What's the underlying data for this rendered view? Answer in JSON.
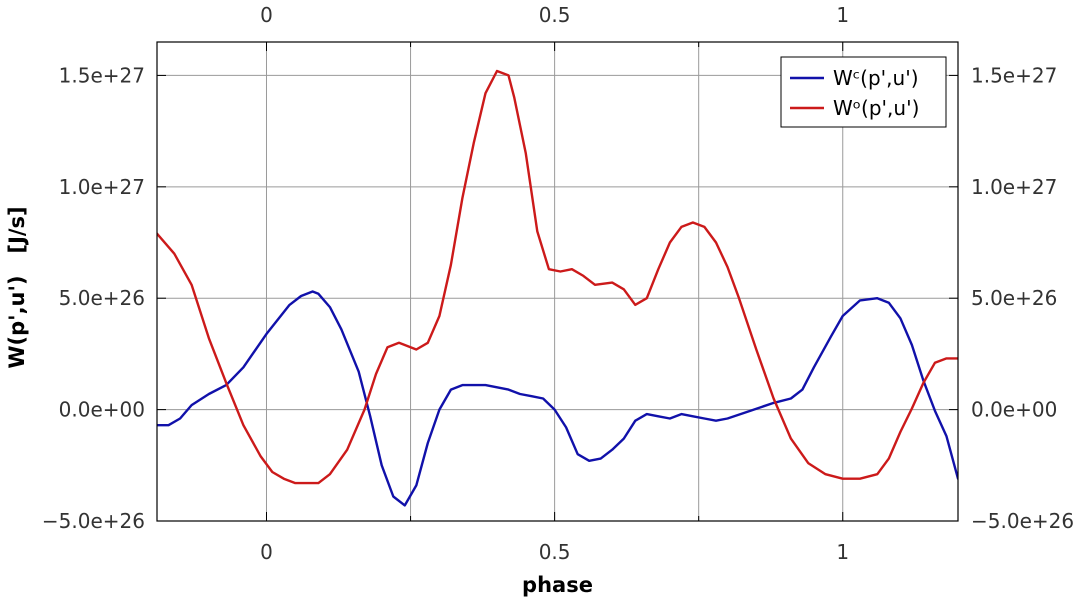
{
  "chart_data": {
    "type": "line",
    "title": "",
    "xlabel": "phase",
    "ylabel": "W(p',u')   [J/s]",
    "xlim": [
      -0.19,
      1.2
    ],
    "ylim": [
      -5e+26,
      1.65e+27
    ],
    "x_ticks": [
      0,
      0.5,
      1
    ],
    "x_tick_labels": [
      "0",
      "0.5",
      "1"
    ],
    "x_minor_ticks": [
      0.25,
      0.75
    ],
    "y_ticks": [
      -5e+26,
      0,
      5e+26,
      1e+27,
      1.5e+27
    ],
    "y_tick_labels": [
      "−5.0e+26",
      "0.0e+00",
      "5.0e+26",
      "1.0e+27",
      "1.5e+27"
    ],
    "grid": true,
    "mirror_axes": true,
    "legend_position": "top-right",
    "series": [
      {
        "name": "Wᶜ(p',u')",
        "color": "#1111aa",
        "x": [
          -0.19,
          -0.17,
          -0.15,
          -0.13,
          -0.1,
          -0.07,
          -0.04,
          0,
          0.04,
          0.06,
          0.08,
          0.09,
          0.11,
          0.13,
          0.16,
          0.18,
          0.2,
          0.22,
          0.24,
          0.26,
          0.28,
          0.3,
          0.32,
          0.34,
          0.36,
          0.38,
          0.4,
          0.42,
          0.44,
          0.46,
          0.48,
          0.5,
          0.52,
          0.54,
          0.56,
          0.58,
          0.6,
          0.62,
          0.64,
          0.66,
          0.68,
          0.7,
          0.72,
          0.74,
          0.76,
          0.78,
          0.8,
          0.84,
          0.88,
          0.91,
          0.93,
          0.95,
          0.98,
          1,
          1.03,
          1.06,
          1.08,
          1.1,
          1.12,
          1.14,
          1.16,
          1.18,
          1.2
        ],
        "y": [
          -7e+25,
          -7e+25,
          -4e+25,
          2e+25,
          7e+25,
          1.1e+26,
          1.9e+26,
          3.4e+26,
          4.7e+26,
          5.1e+26,
          5.3e+26,
          5.2e+26,
          4.6e+26,
          3.6e+26,
          1.7e+26,
          -3e+25,
          -2.5e+26,
          -3.9e+26,
          -4.3e+26,
          -3.4e+26,
          -1.5e+26,
          0,
          9e+25,
          1.1e+26,
          1.1e+26,
          1.1e+26,
          1e+26,
          9e+25,
          7e+25,
          6e+25,
          5e+25,
          0,
          -8e+25,
          -2e+26,
          -2.3e+26,
          -2.2e+26,
          -1.8e+26,
          -1.3e+26,
          -5e+25,
          -2e+25,
          -3e+25,
          -4e+25,
          -2e+25,
          -3e+25,
          -4e+25,
          -5e+25,
          -4e+25,
          -5e+24,
          3e+25,
          5e+25,
          9e+25,
          1.9e+26,
          3.3e+26,
          4.2e+26,
          4.9e+26,
          5e+26,
          4.8e+26,
          4.1e+26,
          2.9e+26,
          1.3e+26,
          -5e+24,
          -1.2e+26,
          -3.1e+26
        ]
      },
      {
        "name": "Wᵒ(p',u')",
        "color": "#cc1a1a",
        "x": [
          -0.19,
          -0.16,
          -0.13,
          -0.1,
          -0.07,
          -0.04,
          -0.01,
          0.01,
          0.03,
          0.05,
          0.07,
          0.09,
          0.11,
          0.14,
          0.17,
          0.19,
          0.21,
          0.23,
          0.24,
          0.26,
          0.28,
          0.3,
          0.32,
          0.34,
          0.36,
          0.38,
          0.4,
          0.42,
          0.43,
          0.45,
          0.47,
          0.49,
          0.51,
          0.53,
          0.55,
          0.57,
          0.6,
          0.62,
          0.64,
          0.66,
          0.68,
          0.7,
          0.72,
          0.74,
          0.76,
          0.78,
          0.8,
          0.82,
          0.85,
          0.88,
          0.91,
          0.94,
          0.97,
          1,
          1.03,
          1.06,
          1.08,
          1.1,
          1.12,
          1.14,
          1.16,
          1.18,
          1.2
        ],
        "y": [
          7.9e+26,
          7e+26,
          5.6e+26,
          3.2e+26,
          1.2e+26,
          -7e+25,
          -2.1e+26,
          -2.8e+26,
          -3.1e+26,
          -3.3e+26,
          -3.3e+26,
          -3.3e+26,
          -2.9e+26,
          -1.8e+26,
          0,
          1.6e+26,
          2.8e+26,
          3e+26,
          2.9e+26,
          2.7e+26,
          3e+26,
          4.2e+26,
          6.5e+26,
          9.5e+26,
          1.2e+27,
          1.42e+27,
          1.52e+27,
          1.5e+27,
          1.4e+27,
          1.15e+27,
          8e+26,
          6.3e+26,
          6.2e+26,
          6.3e+26,
          6e+26,
          5.6e+26,
          5.7e+26,
          5.4e+26,
          4.7e+26,
          5e+26,
          6.3e+26,
          7.5e+26,
          8.2e+26,
          8.4e+26,
          8.2e+26,
          7.5e+26,
          6.4e+26,
          5e+26,
          2.7e+26,
          5e+25,
          -1.3e+26,
          -2.4e+26,
          -2.9e+26,
          -3.1e+26,
          -3.1e+26,
          -2.9e+26,
          -2.2e+26,
          -1e+26,
          5e+24,
          1.2e+26,
          2.1e+26,
          2.3e+26,
          2.3e+26
        ]
      }
    ]
  }
}
